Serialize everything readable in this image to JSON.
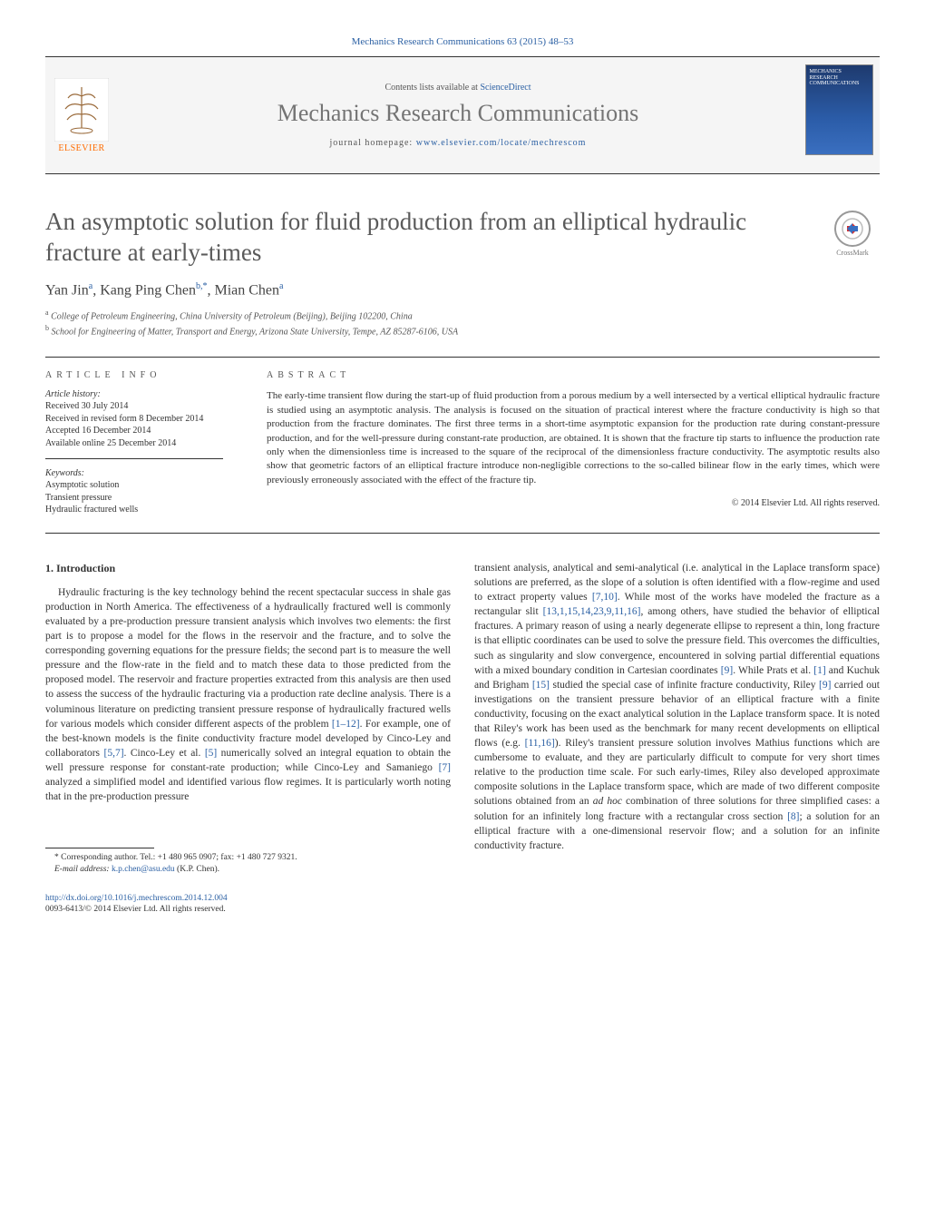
{
  "header": {
    "citation": "Mechanics Research Communications 63 (2015) 48–53",
    "contents_prefix": "Contents lists available at ",
    "sciencedirect": "ScienceDirect",
    "journal_name": "Mechanics Research Communications",
    "homepage_label": "journal homepage: ",
    "homepage_url": "www.elsevier.com/locate/mechrescom",
    "elsevier_label": "ELSEVIER",
    "cover_label": "MECHANICS RESEARCH COMMUNICATIONS"
  },
  "colors": {
    "link": "#2a5fa3",
    "title_gray": "#5a5a5a",
    "journal_gray": "#747474",
    "elsevier_orange": "#ff6c00",
    "cover_top": "#1e3a6e",
    "cover_bottom": "#3a6fc0",
    "text": "#333333",
    "rule": "#333333"
  },
  "typography": {
    "title_pt": 27,
    "journal_name_pt": 26,
    "authors_pt": 16,
    "body_pt": 11.5,
    "abstract_pt": 11,
    "info_pt": 10,
    "footnote_pt": 9.5
  },
  "article": {
    "title": "An asymptotic solution for fluid production from an elliptical hydraulic fracture at early-times",
    "crossmark_label": "CrossMark",
    "authors_html": "Yan Jin<sup>a</sup>, Kang Ping Chen<sup>b,*</sup>, Mian Chen<sup>a</sup>",
    "affiliations": [
      {
        "sup": "a",
        "text": "College of Petroleum Engineering, China University of Petroleum (Beijing), Beijing 102200, China"
      },
      {
        "sup": "b",
        "text": "School for Engineering of Matter, Transport and Energy, Arizona State University, Tempe, AZ 85287-6106, USA"
      }
    ]
  },
  "info": {
    "article_info_heading": "ARTICLE INFO",
    "history_label": "Article history:",
    "history": [
      "Received 30 July 2014",
      "Received in revised form 8 December 2014",
      "Accepted 16 December 2014",
      "Available online 25 December 2014"
    ],
    "keywords_label": "Keywords:",
    "keywords": [
      "Asymptotic solution",
      "Transient pressure",
      "Hydraulic fractured wells"
    ]
  },
  "abstract": {
    "heading": "ABSTRACT",
    "text": "The early-time transient flow during the start-up of fluid production from a porous medium by a well intersected by a vertical elliptical hydraulic fracture is studied using an asymptotic analysis. The analysis is focused on the situation of practical interest where the fracture conductivity is high so that production from the fracture dominates. The first three terms in a short-time asymptotic expansion for the production rate during constant-pressure production, and for the well-pressure during constant-rate production, are obtained. It is shown that the fracture tip starts to influence the production rate only when the dimensionless time is increased to the square of the reciprocal of the dimensionless fracture conductivity. The asymptotic results also show that geometric factors of an elliptical fracture introduce non-negligible corrections to the so-called bilinear flow in the early times, which were previously erroneously associated with the effect of the fracture tip.",
    "copyright": "© 2014 Elsevier Ltd. All rights reserved."
  },
  "body": {
    "section_heading": "1.  Introduction",
    "col1_p1": "Hydraulic fracturing is the key technology behind the recent spectacular success in shale gas production in North America. The effectiveness of a hydraulically fractured well is commonly evaluated by a pre-production pressure transient analysis which involves two elements: the first part is to propose a model for the flows in the reservoir and the fracture, and to solve the corresponding governing equations for the pressure fields; the second part is to measure the well pressure and the flow-rate in the field and to match these data to those predicted from the proposed model. The reservoir and fracture properties extracted from this analysis are then used to assess the success of the hydraulic fracturing via a production rate decline analysis. There is a voluminous literature on predicting transient pressure response of hydraulically fractured wells for various models which consider different aspects of the problem ",
    "col1_ref1": "[1–12]",
    "col1_p1b": ". For example, one of the best-known models is the finite conductivity fracture model developed by Cinco-Ley and collaborators ",
    "col1_ref2": "[5,7]",
    "col1_p1c": ". Cinco-Ley et al. ",
    "col1_ref3": "[5]",
    "col1_p1d": " numerically solved an integral equation to obtain the well pressure response for constant-rate production; while Cinco-Ley and Samaniego ",
    "col1_ref4": "[7]",
    "col1_p1e": " analyzed a simplified model and identified various flow regimes. It is particularly worth noting that in the pre-production pressure",
    "col2_p1": "transient analysis, analytical and semi-analytical (i.e. analytical in the Laplace transform space) solutions are preferred, as the slope of a solution is often identified with a flow-regime and used to extract property values ",
    "col2_ref1": "[7,10]",
    "col2_p1b": ". While most of the works have modeled the fracture as a rectangular slit ",
    "col2_ref2": "[13,1,15,14,23,9,11,16]",
    "col2_p1c": ", among others, have studied the behavior of elliptical fractures. A primary reason of using a nearly degenerate ellipse to represent a thin, long fracture is that elliptic coordinates can be used to solve the pressure field. This overcomes the difficulties, such as singularity and slow convergence, encountered in solving partial differential equations with a mixed boundary condition in Cartesian coordinates ",
    "col2_ref3": "[9]",
    "col2_p1d": ". While Prats et al. ",
    "col2_ref4": "[1]",
    "col2_p1e": " and Kuchuk and Brigham ",
    "col2_ref5": "[15]",
    "col2_p1f": " studied the special case of infinite fracture conductivity, Riley ",
    "col2_ref6": "[9]",
    "col2_p1g": " carried out investigations on the transient pressure behavior of an elliptical fracture with a finite conductivity, focusing on the exact analytical solution in the Laplace transform space. It is noted that Riley's work has been used as the benchmark for many recent developments on elliptical flows (e.g. ",
    "col2_ref7": "[11,16]",
    "col2_p1h": "). Riley's transient pressure solution involves Mathius functions which are cumbersome to evaluate, and they are particularly difficult to compute for very short times relative to the production time scale. For such early-times, Riley also developed approximate composite solutions in the Laplace transform space, which are made of two different composite solutions obtained from an ",
    "col2_adhoc": "ad hoc",
    "col2_p1i": " combination of three solutions for three simplified cases: a solution for an infinitely long fracture with a rectangular cross section ",
    "col2_ref8": "[8]",
    "col2_p1j": "; a solution for an elliptical fracture with a one-dimensional reservoir flow; and a solution for an infinite conductivity fracture."
  },
  "footnote": {
    "corr_label": "* Corresponding author. Tel.: +1 480 965 0907; fax: +1 480 727 9321.",
    "email_label": "E-mail address: ",
    "email": "k.p.chen@asu.edu",
    "email_suffix": " (K.P. Chen)."
  },
  "footer": {
    "doi": "http://dx.doi.org/10.1016/j.mechrescom.2014.12.004",
    "copy": "0093-6413/© 2014 Elsevier Ltd. All rights reserved."
  }
}
